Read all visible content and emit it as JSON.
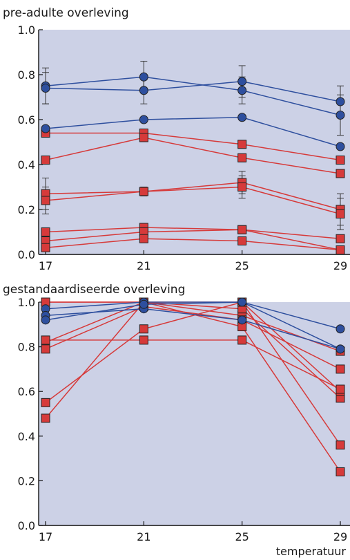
{
  "chart_data": [
    {
      "type": "line",
      "title": "pre-adulte overleving",
      "xlabel": "",
      "ylabel": "",
      "x": [
        17,
        21,
        25,
        29
      ],
      "xlim": [
        17,
        29
      ],
      "ylim": [
        0.0,
        1.0
      ],
      "yticks": [
        "0.0",
        "0.2",
        "0.4",
        "0.6",
        "0.8",
        "1.0"
      ],
      "xticks": [
        "17",
        "21",
        "25",
        "29"
      ],
      "grid": false,
      "background": "#ccd1e6",
      "colors": {
        "blue": "#2e4f9e",
        "red": "#d63a3a",
        "marker_edge": "#222222"
      },
      "series": [
        {
          "color": "blue",
          "marker": "circle",
          "values": [
            0.75,
            0.79,
            0.73,
            0.62
          ],
          "err": [
            0.08,
            0.07,
            0.06,
            0.09
          ]
        },
        {
          "color": "blue",
          "marker": "circle",
          "values": [
            0.74,
            0.73,
            0.77,
            0.68
          ],
          "err": [
            0.07,
            0.06,
            0.07,
            0.07
          ]
        },
        {
          "color": "blue",
          "marker": "circle",
          "values": [
            0.56,
            0.6,
            0.61,
            0.48
          ],
          "err": [
            0,
            0,
            0,
            0
          ]
        },
        {
          "color": "red",
          "marker": "square",
          "values": [
            0.54,
            0.54,
            0.49,
            0.42
          ],
          "err": [
            0,
            0,
            0,
            0
          ]
        },
        {
          "color": "red",
          "marker": "square",
          "values": [
            0.42,
            0.52,
            0.43,
            0.36
          ],
          "err": [
            0,
            0,
            0,
            0
          ]
        },
        {
          "color": "red",
          "marker": "square",
          "values": [
            0.27,
            0.28,
            0.32,
            0.2
          ],
          "err": [
            0.07,
            0.02,
            0.05,
            0.07
          ]
        },
        {
          "color": "red",
          "marker": "square",
          "values": [
            0.24,
            0.28,
            0.3,
            0.18
          ],
          "err": [
            0.06,
            0.02,
            0.05,
            0.07
          ]
        },
        {
          "color": "red",
          "marker": "square",
          "values": [
            0.1,
            0.12,
            0.11,
            0.07
          ],
          "err": [
            0,
            0,
            0,
            0
          ]
        },
        {
          "color": "red",
          "marker": "square",
          "values": [
            0.06,
            0.1,
            0.11,
            0.02
          ],
          "err": [
            0,
            0,
            0,
            0
          ]
        },
        {
          "color": "red",
          "marker": "square",
          "values": [
            0.03,
            0.07,
            0.06,
            0.02
          ],
          "err": [
            0,
            0,
            0,
            0
          ]
        }
      ]
    },
    {
      "type": "line",
      "title": "gestandaardiseerde overleving",
      "xlabel": "temperatuur",
      "ylabel": "",
      "x": [
        17,
        21,
        25,
        29
      ],
      "xlim": [
        17,
        29
      ],
      "ylim": [
        0.0,
        1.0
      ],
      "yticks": [
        "0.0",
        "0.2",
        "0.4",
        "0.6",
        "0.8",
        "1.0"
      ],
      "xticks": [
        "17",
        "21",
        "25",
        "29"
      ],
      "grid": false,
      "background": "#ccd1e6",
      "colors": {
        "blue": "#2e4f9e",
        "red": "#d63a3a",
        "marker_edge": "#222222"
      },
      "series": [
        {
          "color": "blue",
          "marker": "circle",
          "values": [
            0.97,
            1.0,
            1.0,
            0.88
          ],
          "err": [
            0,
            0,
            0,
            0
          ]
        },
        {
          "color": "blue",
          "marker": "circle",
          "values": [
            0.94,
            0.97,
            0.92,
            0.79
          ],
          "err": [
            0,
            0,
            0,
            0
          ]
        },
        {
          "color": "blue",
          "marker": "circle",
          "values": [
            0.92,
            0.99,
            1.0,
            0.79
          ],
          "err": [
            0,
            0,
            0,
            0
          ]
        },
        {
          "color": "red",
          "marker": "square",
          "values": [
            1.0,
            1.0,
            0.94,
            0.78
          ],
          "err": [
            0,
            0,
            0,
            0
          ]
        },
        {
          "color": "red",
          "marker": "square",
          "values": [
            1.0,
            1.0,
            0.97,
            0.57
          ],
          "err": [
            0,
            0,
            0,
            0
          ]
        },
        {
          "color": "red",
          "marker": "square",
          "values": [
            0.82,
            1.0,
            1.0,
            0.6
          ],
          "err": [
            0,
            0,
            0,
            0
          ]
        },
        {
          "color": "red",
          "marker": "square",
          "values": [
            0.79,
            0.98,
            0.92,
            0.7
          ],
          "err": [
            0,
            0,
            0,
            0
          ]
        },
        {
          "color": "red",
          "marker": "square",
          "values": [
            0.83,
            0.83,
            0.83,
            0.61
          ],
          "err": [
            0,
            0,
            0,
            0
          ]
        },
        {
          "color": "red",
          "marker": "square",
          "values": [
            0.55,
            0.88,
            1.0,
            0.36
          ],
          "err": [
            0,
            0,
            0,
            0
          ]
        },
        {
          "color": "red",
          "marker": "square",
          "values": [
            0.48,
            1.0,
            0.89,
            0.24
          ],
          "err": [
            0,
            0,
            0,
            0
          ]
        }
      ]
    }
  ]
}
